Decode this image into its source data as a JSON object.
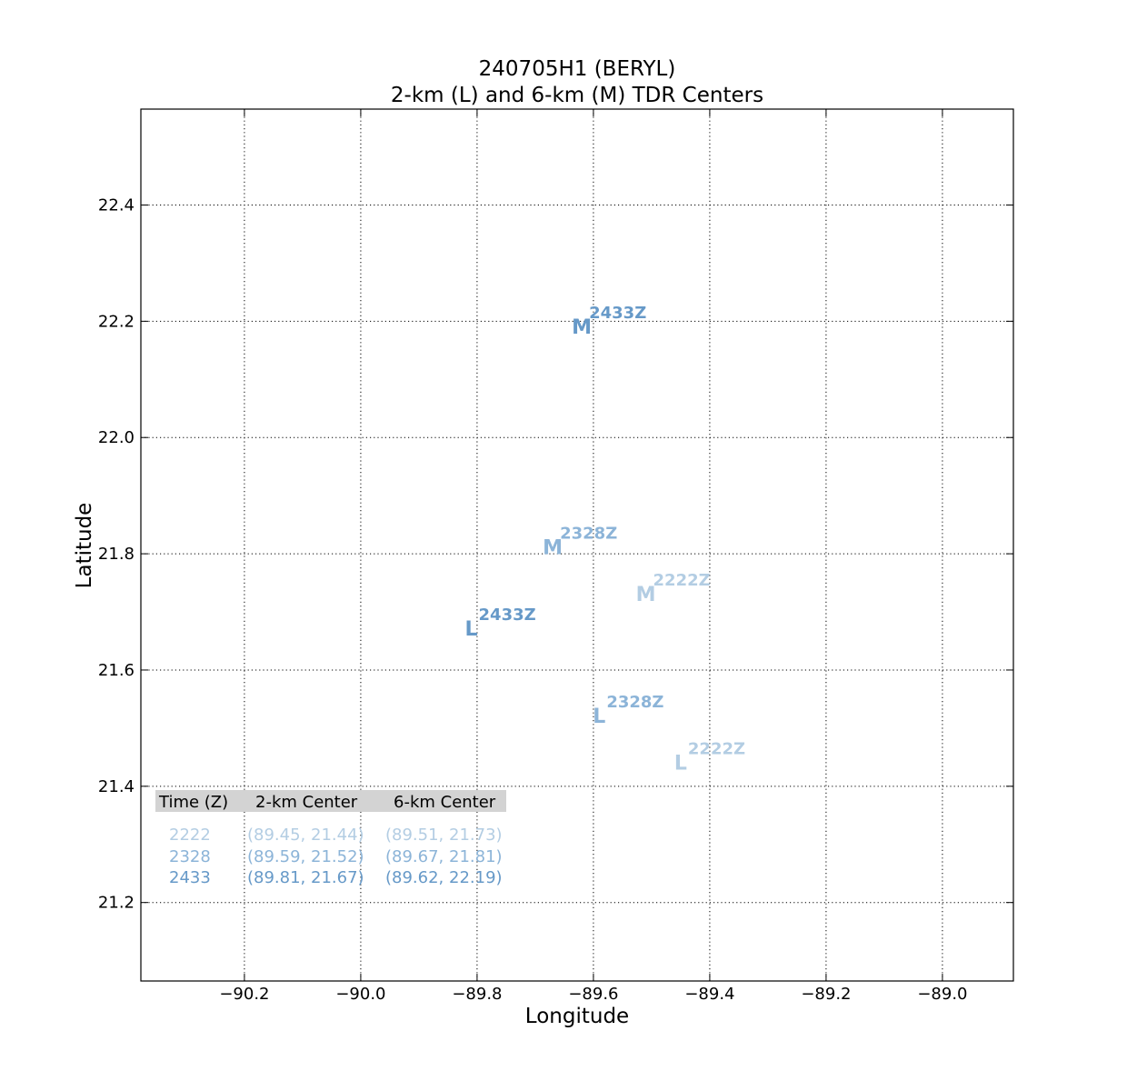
{
  "chart_data": {
    "type": "scatter",
    "title_line1": "240705H1 (BERYL)",
    "title_line2": "2-km (L) and 6-km (M) TDR Centers",
    "xlabel": "Longitude",
    "ylabel": "Latitude",
    "xlim": [
      -90.378,
      -88.878
    ],
    "ylim": [
      21.065,
      22.565
    ],
    "xticks": [
      -90.2,
      -90.0,
      -89.8,
      -89.6,
      -89.4,
      -89.2,
      -89.0
    ],
    "xtick_labels": [
      "−90.2",
      "−90.0",
      "−89.8",
      "−89.6",
      "−89.4",
      "−89.2",
      "−89.0"
    ],
    "yticks": [
      21.2,
      21.4,
      21.6,
      21.8,
      22.0,
      22.2,
      22.4
    ],
    "ytick_labels": [
      "21.2",
      "21.4",
      "21.6",
      "21.8",
      "22.0",
      "22.2",
      "22.4"
    ],
    "grid": true,
    "series": [
      {
        "name": "L",
        "points": [
          {
            "x": -89.45,
            "y": 21.44,
            "time": "2222",
            "label": "2222Z",
            "color": "#b3cde3"
          },
          {
            "x": -89.59,
            "y": 21.52,
            "time": "2328",
            "label": "2328Z",
            "color": "#8cb4d8"
          },
          {
            "x": -89.81,
            "y": 21.67,
            "time": "2433",
            "label": "2433Z",
            "color": "#6699c8"
          }
        ]
      },
      {
        "name": "M",
        "points": [
          {
            "x": -89.51,
            "y": 21.73,
            "time": "2222",
            "label": "2222Z",
            "color": "#b3cde3"
          },
          {
            "x": -89.67,
            "y": 21.81,
            "time": "2328",
            "label": "2328Z",
            "color": "#8cb4d8"
          },
          {
            "x": -89.62,
            "y": 22.19,
            "time": "2433",
            "label": "2433Z",
            "color": "#6699c8"
          }
        ]
      }
    ],
    "table": {
      "headers": [
        "Time (Z)",
        "2-km Center",
        "6-km Center"
      ],
      "header_bg": "#d3d3d3",
      "rows": [
        {
          "time": "2222",
          "center_2km": "(89.45, 21.44)",
          "center_6km": "(89.51, 21.73)",
          "color": "#b3cde3"
        },
        {
          "time": "2328",
          "center_2km": "(89.59, 21.52)",
          "center_6km": "(89.67, 21.81)",
          "color": "#8cb4d8"
        },
        {
          "time": "2433",
          "center_2km": "(89.81, 21.67)",
          "center_6km": "(89.62, 22.19)",
          "color": "#6699c8"
        }
      ]
    }
  }
}
